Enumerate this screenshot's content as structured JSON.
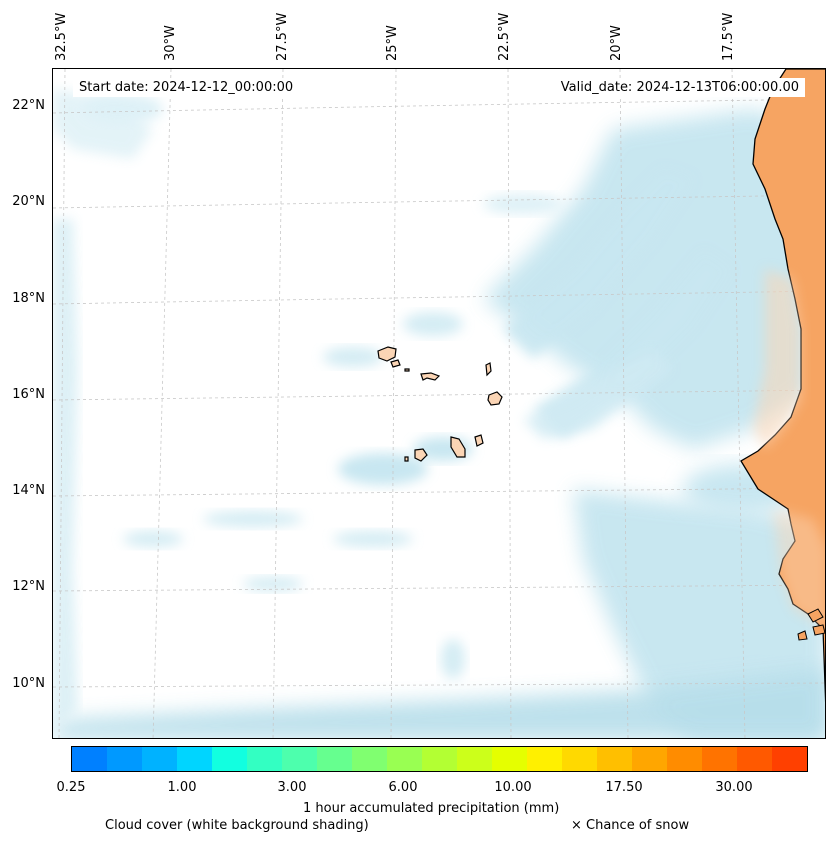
{
  "map": {
    "start_date": "Start date: 2024-12-12_00:00:00",
    "valid_date": "Valid_date: 2024-12-13T06:00:00.00",
    "lat_labels": [
      "22°N",
      "20°N",
      "18°N",
      "16°N",
      "14°N",
      "12°N",
      "10°N"
    ],
    "lon_labels": [
      "32.5°W",
      "30°W",
      "27.5°W",
      "25°W",
      "22.5°W",
      "20°W",
      "17.5°W"
    ],
    "land_color": "#f6a462",
    "island_color": "#fbd5b5",
    "cloud_color": "#9fd3e3"
  },
  "colorbar": {
    "colors": [
      "#0080ff",
      "#0099ff",
      "#00b2ff",
      "#00d5ff",
      "#12ffe0",
      "#33ffc2",
      "#4dffad",
      "#66ff8f",
      "#80ff70",
      "#99ff52",
      "#b3ff33",
      "#ccff1a",
      "#e5ff00",
      "#fff000",
      "#ffd900",
      "#ffbf00",
      "#ffa600",
      "#ff8c00",
      "#ff7300",
      "#ff5900",
      "#ff4000"
    ],
    "tick_labels": [
      "0.25",
      "1.00",
      "3.00",
      "6.00",
      "10.00",
      "17.50",
      "30.00"
    ],
    "label": "1 hour accumulated precipitation (mm)"
  },
  "legend": {
    "cloud_cover": "Cloud cover (white background shading)",
    "snow": "× Chance of snow"
  }
}
